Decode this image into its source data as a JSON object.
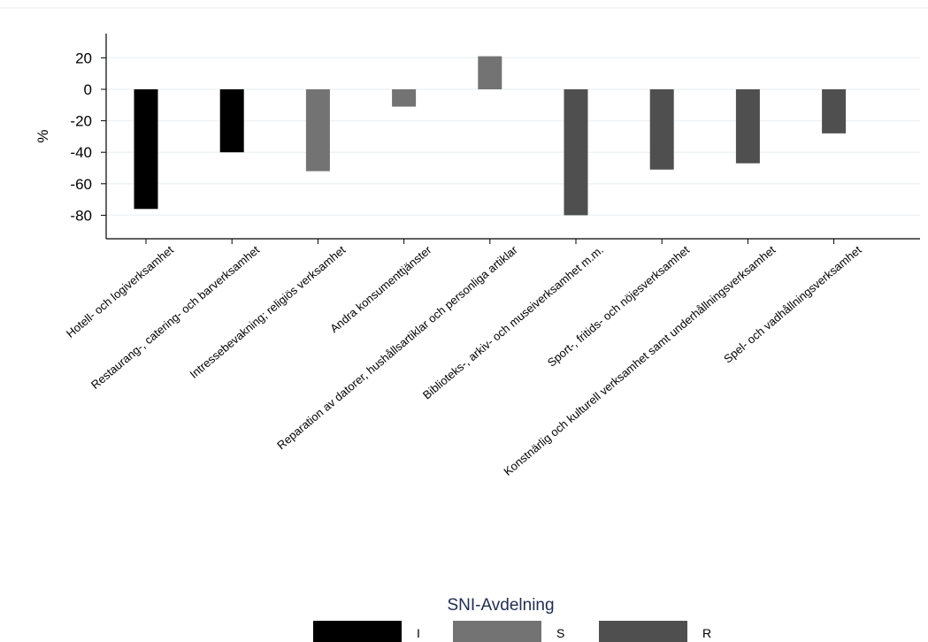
{
  "chart_data": {
    "type": "bar",
    "title": "",
    "xlabel": "",
    "ylabel": "%",
    "ylim": [
      -90,
      30
    ],
    "yticks": [
      20,
      0,
      -20,
      -40,
      -60,
      -80
    ],
    "grid": true,
    "categories": [
      "Hotell- och logiverksamhet",
      "Restaurang-, catering- och barverksamhet",
      "Intressebevakning; religiös verksamhet",
      "Andra konsumenttjänster",
      "Reparation av datorer, hushållsartiklar och personliga artiklar",
      "Biblioteks-, arkiv- och museiverksamhet m.m.",
      "Sport-, fritids- och nöjesverksamhet",
      "Konstnärlig och kulturell verksamhet samt underhållningsverksamhet",
      "Spel- och vadhållningsverksamhet"
    ],
    "values": [
      -76,
      -40,
      -52,
      -11,
      21,
      -80,
      -51,
      -47,
      -28
    ],
    "groups": [
      "I",
      "I",
      "S",
      "S",
      "S",
      "R",
      "R",
      "R",
      "R"
    ],
    "legend": {
      "title": "SNI-Avdelning",
      "placement": "bottom",
      "entries": [
        {
          "label": "I",
          "color": "#000000"
        },
        {
          "label": "S",
          "color": "#737373"
        },
        {
          "label": "R",
          "color": "#4f4f4f"
        }
      ]
    }
  }
}
